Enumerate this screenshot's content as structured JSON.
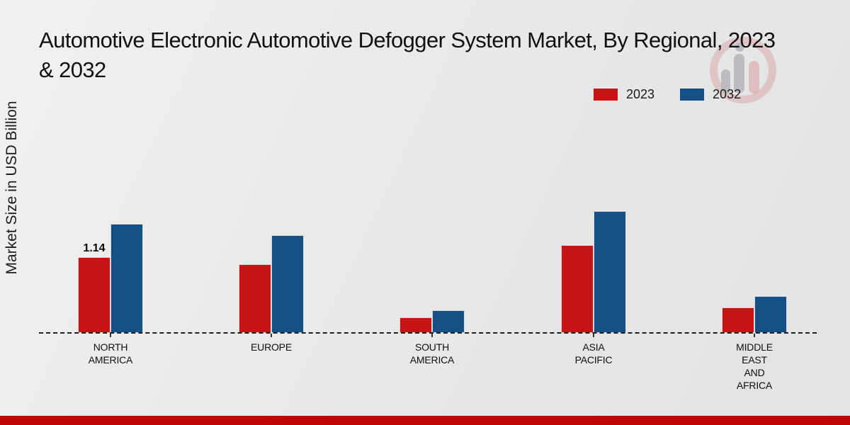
{
  "title": {
    "full": "Automotive Electronic Automotive Defogger System Market, By Regional, 2023 & 2032",
    "line1": "Automotive Electronic Automotive Defogger System Market, By Regional, 2023",
    "line2": "& 2032"
  },
  "ylabel": "Market Size in USD Billion",
  "legend": [
    {
      "label": "2023",
      "color": "#c61414"
    },
    {
      "label": "2032",
      "color": "#164f85"
    }
  ],
  "colors": {
    "bar_2023": "#c61414",
    "bar_2032": "#164f85",
    "footer_strip": "#c00404",
    "background": "#e8e8e8",
    "axis": "#1f1f1f"
  },
  "chart_data": {
    "type": "bar",
    "title": "Automotive Electronic Automotive Defogger System Market, By Regional, 2023 & 2032",
    "xlabel": "",
    "ylabel": "Market Size in USD Billion",
    "categories": [
      "NORTH AMERICA",
      "EUROPE",
      "SOUTH AMERICA",
      "ASIA PACIFIC",
      "MIDDLE EAST AND AFRICA"
    ],
    "series": [
      {
        "name": "2023",
        "color": "#c61414",
        "values": [
          1.14,
          1.03,
          0.23,
          1.32,
          0.38
        ]
      },
      {
        "name": "2032",
        "color": "#164f85",
        "values": [
          1.64,
          1.47,
          0.34,
          1.83,
          0.55
        ]
      }
    ],
    "ylim": [
      0,
      2
    ],
    "grid": false,
    "yticks_visible": false,
    "legend_position": "top-right",
    "baseline_style": "dashed"
  },
  "category_label_lines": [
    [
      "NORTH",
      "AMERICA"
    ],
    [
      "EUROPE"
    ],
    [
      "SOUTH",
      "AMERICA"
    ],
    [
      "ASIA",
      "PACIFIC"
    ],
    [
      "MIDDLE",
      "EAST",
      "AND",
      "AFRICA"
    ]
  ],
  "annotations": [
    {
      "series": "2023",
      "category": "NORTH AMERICA",
      "text": "1.14"
    }
  ]
}
